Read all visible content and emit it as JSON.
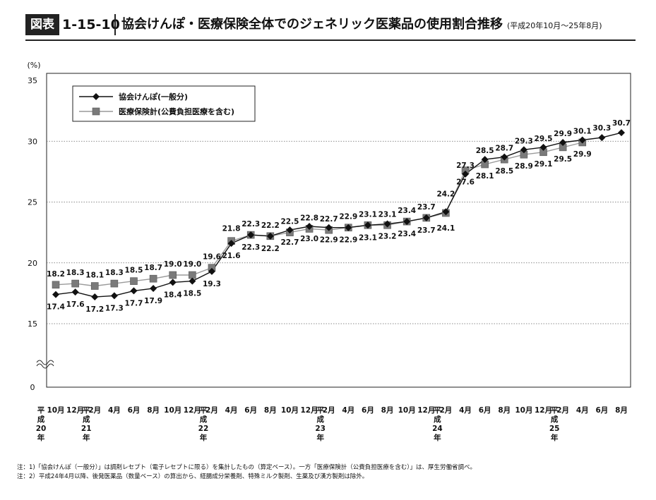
{
  "header": {
    "badge": "図表",
    "number": "1-15-10",
    "title": "協会けんぽ・医療保険全体でのジェネリック医薬品の使用割合推移",
    "period": "(平成20年10月〜25年8月)"
  },
  "chart_data": {
    "type": "line",
    "ylabel": "(%)",
    "ylim": [
      0,
      35
    ],
    "yticks": [
      0,
      15,
      20,
      25,
      30,
      35
    ],
    "axis_break": "15以下省略",
    "grid": "horizontal-dotted",
    "legend_position": "top-left",
    "categories": [
      "平成20年10月",
      "12月",
      "平成21年2月",
      "4月",
      "6月",
      "8月",
      "10月",
      "12月",
      "平成22年2月",
      "4月",
      "6月",
      "8月",
      "10月",
      "12月",
      "平成23年2月",
      "4月",
      "6月",
      "8月",
      "10月",
      "12月",
      "平成24年2月",
      "4月",
      "6月",
      "8月",
      "10月",
      "12月",
      "平成25年2月",
      "4月",
      "6月",
      "8月"
    ],
    "x_tick_labels": [
      "平",
      "10月",
      "12月",
      "平",
      "2月",
      "4月",
      "6月",
      "8月",
      "10月",
      "12月",
      "平",
      "2月",
      "4月",
      "6月",
      "8月",
      "10月",
      "12月",
      "平",
      "2月",
      "4月",
      "6月",
      "8月",
      "10月",
      "12月",
      "平",
      "2月",
      "4月",
      "6月",
      "8月",
      "10月",
      "12月",
      "平",
      "2月",
      "4月",
      "6月",
      "8月"
    ],
    "x_ticks": [
      "10月",
      "12月",
      "2月",
      "4月",
      "6月",
      "8月",
      "10月",
      "12月",
      "2月",
      "4月",
      "6月",
      "8月",
      "10月",
      "12月",
      "2月",
      "4月",
      "6月",
      "8月",
      "10月",
      "12月",
      "2月",
      "4月",
      "6月",
      "8月",
      "10月",
      "12月",
      "2月",
      "4月",
      "6月",
      "8月"
    ],
    "year_labels": [
      {
        "index": 0,
        "text": [
          "平",
          "成",
          "20",
          "年"
        ]
      },
      {
        "index": 2,
        "text": [
          "平",
          "成",
          "21",
          "年"
        ]
      },
      {
        "index": 8,
        "text": [
          "平",
          "成",
          "22",
          "年"
        ]
      },
      {
        "index": 14,
        "text": [
          "平",
          "成",
          "23",
          "年"
        ]
      },
      {
        "index": 20,
        "text": [
          "平",
          "成",
          "24",
          "年"
        ]
      },
      {
        "index": 26,
        "text": [
          "平",
          "成",
          "25",
          "年"
        ]
      }
    ],
    "series": [
      {
        "name": "協会けんぽ(一般分)",
        "marker": "diamond",
        "color": "#111111",
        "values": [
          17.4,
          17.6,
          17.2,
          17.3,
          17.7,
          17.9,
          18.4,
          18.5,
          19.3,
          21.6,
          22.3,
          22.2,
          22.7,
          23.0,
          22.9,
          22.9,
          23.1,
          23.2,
          23.4,
          23.7,
          24.2,
          27.3,
          28.5,
          28.7,
          29.3,
          29.5,
          29.9,
          30.1,
          30.3,
          30.7
        ]
      },
      {
        "name": "医療保険計(公費負担医療を含む)",
        "marker": "square",
        "color": "#888888",
        "values": [
          18.2,
          18.3,
          18.1,
          18.3,
          18.5,
          18.7,
          19.0,
          19.0,
          19.6,
          21.8,
          22.3,
          22.2,
          22.5,
          22.8,
          22.7,
          22.9,
          23.1,
          23.1,
          23.4,
          23.7,
          24.1,
          27.6,
          28.1,
          28.5,
          28.9,
          29.1,
          29.5,
          29.9,
          null,
          null
        ]
      }
    ]
  },
  "notes": [
    "注：1)「協会けんぽ（一般分）」は調剤レセプト（電子レセプトに限る）を集計したもの（算定ベース）。一方「医療保険計（公費負担医療を含む）」は、厚生労働省調べ。",
    "注：2）平成24年4月以降、後発医薬品（数量ベース）の算出から、経腸成分栄養剤、特殊ミルク製剤、生薬及び漢方製剤は除外。"
  ]
}
